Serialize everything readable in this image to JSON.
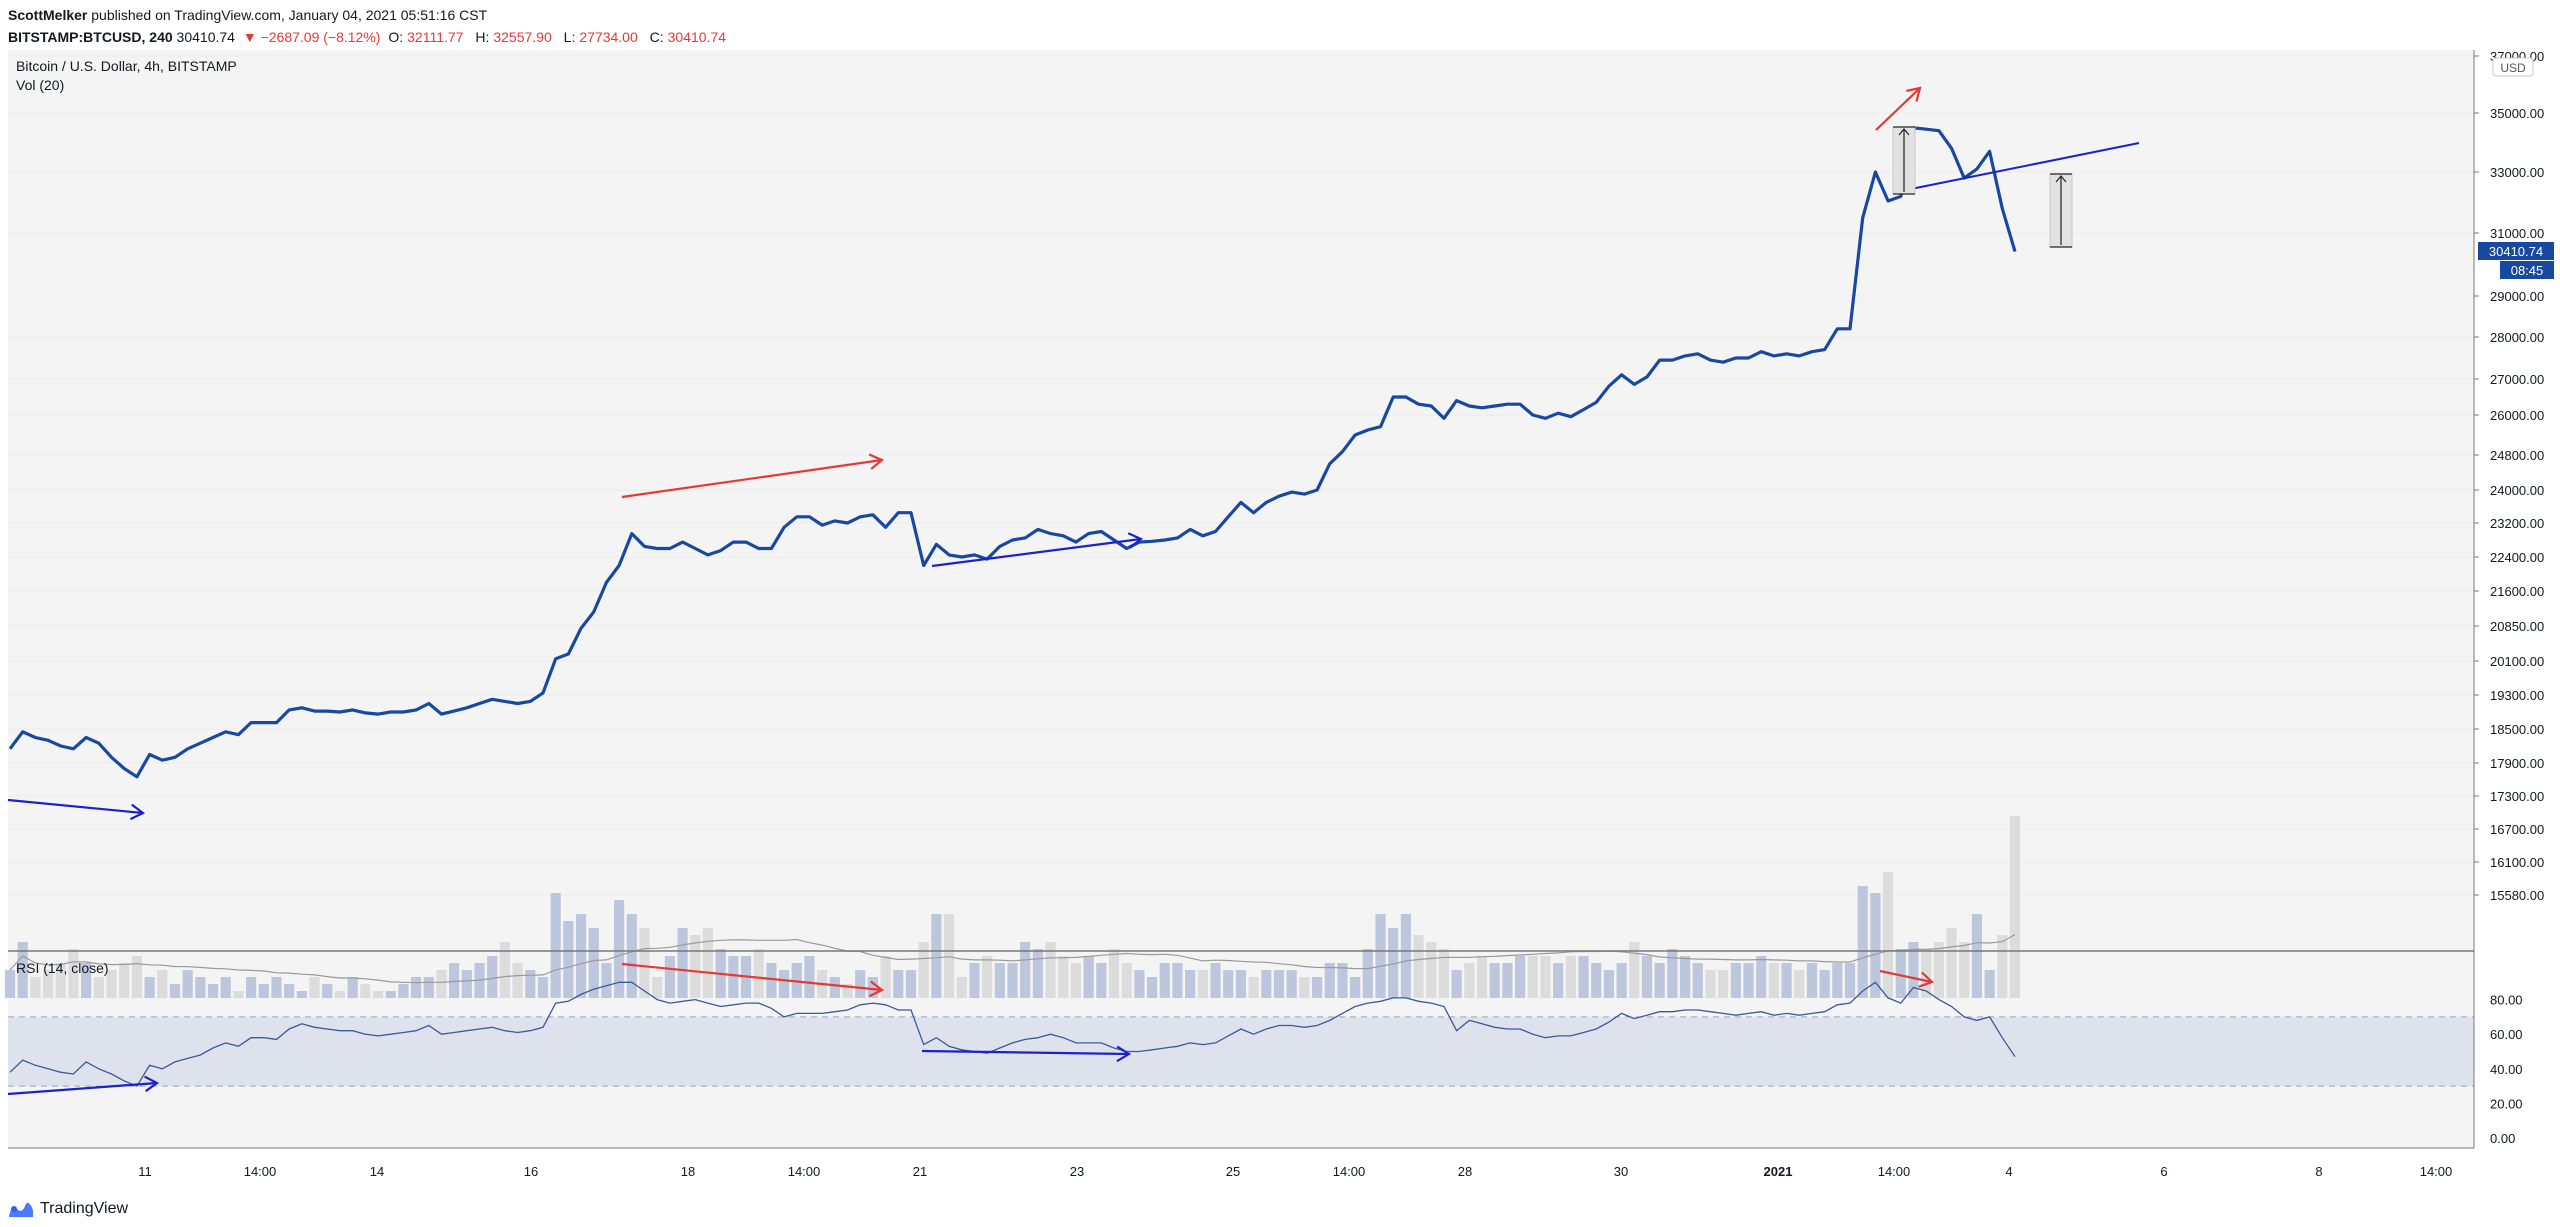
{
  "header": {
    "author": "ScottMelker",
    "published_text": "published on TradingView.com, January 04, 2021 05:51:16 CST",
    "symbol_interval": "BITSTAMP:BTCUSD, 240",
    "last_price": "30410.74",
    "change": "▼ −2687.09 (−8.12%)",
    "open_label": "O:",
    "open": "32111.77",
    "high_label": "H:",
    "high": "32557.90",
    "low_label": "L:",
    "low": "27734.00",
    "close_label": "C:",
    "close": "30410.74"
  },
  "pane_labels": {
    "main": "Bitcoin / U.S. Dollar, 4h, BITSTAMP",
    "volume": "Vol (20)",
    "rsi": "RSI (14, close)",
    "currency": "USD"
  },
  "price_badge": "30410.74",
  "countdown_badge": "08:45",
  "footer": {
    "brand": "TradingView"
  },
  "colors": {
    "price_line": "#1848a0",
    "arrow_red": "#e53935",
    "arrow_blue": "#1c22c8",
    "vol_up": "#bcc7de",
    "vol_down": "#dcdcdc",
    "rsi_band": "#dde2ec",
    "badge_bg": "#1848a0"
  },
  "chart_data": {
    "type": "line",
    "title": "Bitcoin / U.S. Dollar, 4h, BITSTAMP",
    "x_ticks": [
      "11",
      "14:00",
      "14",
      "16",
      "18",
      "14:00",
      "21",
      "23",
      "25",
      "14:00",
      "28",
      "30",
      "2021",
      "14:00",
      "4",
      "6",
      "8",
      "14:00"
    ],
    "price_ticks": [
      "37000.00",
      "35000.00",
      "33000.00",
      "31000.00",
      "29000.00",
      "28000.00",
      "27000.00",
      "26000.00",
      "24800.00",
      "24000.00",
      "23200.00",
      "22400.00",
      "21600.00",
      "20850.00",
      "20100.00",
      "19300.00",
      "18500.00",
      "17900.00",
      "17300.00",
      "16700.00",
      "16100.00",
      "15580.00"
    ],
    "rsi_ticks": [
      "80.00",
      "60.00",
      "40.00",
      "20.00",
      "0.00"
    ],
    "rsi_ylim": [
      0,
      100
    ],
    "rsi_band": [
      30,
      70
    ],
    "series": [
      {
        "name": "BTCUSD",
        "values": [
          18150,
          18450,
          18350,
          18300,
          18200,
          18150,
          18350,
          18250,
          18000,
          17800,
          17650,
          18050,
          17950,
          18000,
          18150,
          18250,
          18350,
          18450,
          18400,
          18650,
          18650,
          18650,
          18950,
          19000,
          18920,
          18920,
          18900,
          18950,
          18880,
          18850,
          18900,
          18900,
          18950,
          19100,
          18850,
          18920,
          19000,
          19100,
          19200,
          19150,
          19100,
          19150,
          19350,
          20150,
          20250,
          20800,
          21150,
          21800,
          22200,
          22950,
          22650,
          22600,
          22600,
          22750,
          22600,
          22450,
          22550,
          22750,
          22750,
          22600,
          22600,
          23100,
          23350,
          23350,
          23150,
          23250,
          23200,
          23350,
          23400,
          23100,
          23450,
          23450,
          22200,
          22700,
          22450,
          22400,
          22450,
          22350,
          22650,
          22800,
          22850,
          23050,
          22950,
          22900,
          22750,
          22950,
          23000,
          22800,
          22600,
          22750,
          22770,
          22800,
          22850,
          23050,
          22900,
          23000,
          23350,
          23700,
          23450,
          23700,
          23850,
          23950,
          23900,
          24000,
          24600,
          24900,
          25400,
          25550,
          25650,
          26500,
          26500,
          26300,
          26250,
          25900,
          26400,
          26250,
          26200,
          26250,
          26300,
          26300,
          26000,
          25900,
          26050,
          25950,
          26150,
          26350,
          26800,
          27100,
          26850,
          27050,
          27450,
          27450,
          27550,
          27600,
          27450,
          27400,
          27500,
          27500,
          27650,
          27550,
          27600,
          27550,
          27650,
          27700,
          28200,
          28200,
          31500,
          33000,
          32050,
          32200,
          34500,
          34450,
          34400,
          33800,
          32800,
          33100,
          33700,
          31800,
          30410
        ]
      },
      {
        "name": "Vol (20)",
        "values": [
          4,
          8,
          3,
          4,
          5,
          7,
          5,
          3,
          4,
          5,
          6,
          3,
          4,
          2,
          4,
          3,
          2,
          3,
          1,
          3,
          2,
          3,
          2,
          1,
          3,
          2,
          1,
          3,
          2,
          1,
          1,
          2,
          3,
          3,
          4,
          5,
          4,
          5,
          6,
          8,
          5,
          4,
          3,
          15,
          11,
          12,
          10,
          5,
          14,
          12,
          10,
          3,
          6,
          10,
          9,
          10,
          7,
          6,
          6,
          7,
          5,
          4,
          5,
          6,
          4,
          3,
          2,
          4,
          3,
          6,
          4,
          4,
          8,
          12,
          12,
          3,
          5,
          6,
          5,
          5,
          8,
          7,
          8,
          6,
          5,
          6,
          5,
          7,
          5,
          4,
          3,
          5,
          5,
          4,
          4,
          5,
          4,
          4,
          3,
          4,
          4,
          4,
          3,
          3,
          5,
          5,
          3,
          7,
          12,
          10,
          12,
          9,
          8,
          7,
          4,
          5,
          6,
          5,
          5,
          6,
          6,
          6,
          5,
          6,
          6,
          5,
          4,
          5,
          8,
          6,
          5,
          7,
          6,
          5,
          4,
          4,
          5,
          5,
          6,
          5,
          5,
          4,
          5,
          4,
          5,
          5,
          16,
          15,
          18,
          7,
          8,
          7,
          8,
          10,
          8,
          12,
          4,
          9,
          26
        ]
      },
      {
        "name": "RSI (14, close)",
        "values": [
          38,
          45,
          42,
          40,
          38,
          37,
          44,
          40,
          37,
          33,
          30,
          42,
          40,
          44,
          46,
          48,
          52,
          55,
          53,
          58,
          58,
          57,
          63,
          66,
          64,
          63,
          62,
          62,
          60,
          59,
          60,
          61,
          62,
          65,
          60,
          61,
          62,
          63,
          64,
          62,
          61,
          62,
          64,
          78,
          79,
          83,
          86,
          88,
          90,
          90,
          85,
          80,
          78,
          79,
          80,
          78,
          76,
          77,
          78,
          78,
          75,
          70,
          72,
          72,
          72,
          73,
          74,
          77,
          78,
          77,
          74,
          74,
          54,
          58,
          53,
          51,
          50,
          49,
          52,
          55,
          57,
          58,
          60,
          58,
          55,
          55,
          55,
          52,
          50,
          50,
          51,
          52,
          53,
          55,
          54,
          55,
          59,
          63,
          60,
          63,
          65,
          65,
          64,
          65,
          68,
          72,
          76,
          78,
          79,
          81,
          81,
          79,
          78,
          76,
          62,
          68,
          66,
          64,
          63,
          63,
          60,
          58,
          59,
          59,
          61,
          63,
          67,
          72,
          69,
          71,
          73,
          73,
          74,
          74,
          73,
          72,
          71,
          72,
          73,
          71,
          72,
          71,
          72,
          73,
          77,
          78,
          85,
          90,
          81,
          78,
          87,
          85,
          80,
          76,
          70,
          68,
          70,
          58,
          47
        ]
      }
    ]
  }
}
